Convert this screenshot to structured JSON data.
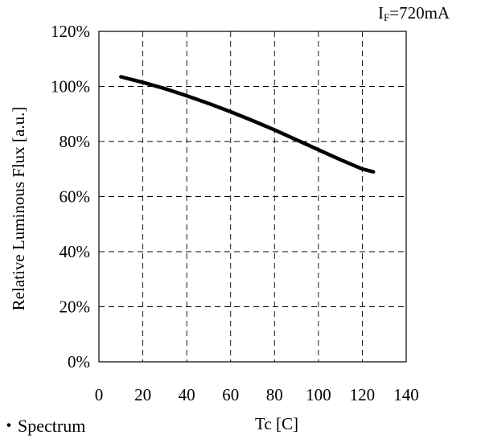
{
  "chart_data": {
    "type": "line",
    "title": "",
    "annotation": {
      "main": "I",
      "sub": "F",
      "rest": "=720mA"
    },
    "xlabel": "Tc [C]",
    "ylabel": "Relative Luminous Flux [a.u.]",
    "xlim": [
      0,
      140
    ],
    "ylim": [
      0,
      120
    ],
    "x_ticks": [
      0,
      20,
      40,
      60,
      80,
      100,
      120,
      140
    ],
    "y_ticks": [
      0,
      20,
      40,
      60,
      80,
      100,
      120
    ],
    "y_tick_suffix": "%",
    "grid": true,
    "grid_style": "dashed",
    "series": [
      {
        "color": "#000000",
        "x": [
          10,
          20,
          30,
          40,
          50,
          60,
          70,
          80,
          90,
          100,
          110,
          120,
          125
        ],
        "y": [
          103.5,
          101.5,
          99.2,
          96.6,
          93.8,
          90.8,
          87.6,
          84.2,
          80.6,
          77.0,
          73.4,
          70.0,
          69.0
        ]
      }
    ]
  },
  "caption": "・Spectrum"
}
